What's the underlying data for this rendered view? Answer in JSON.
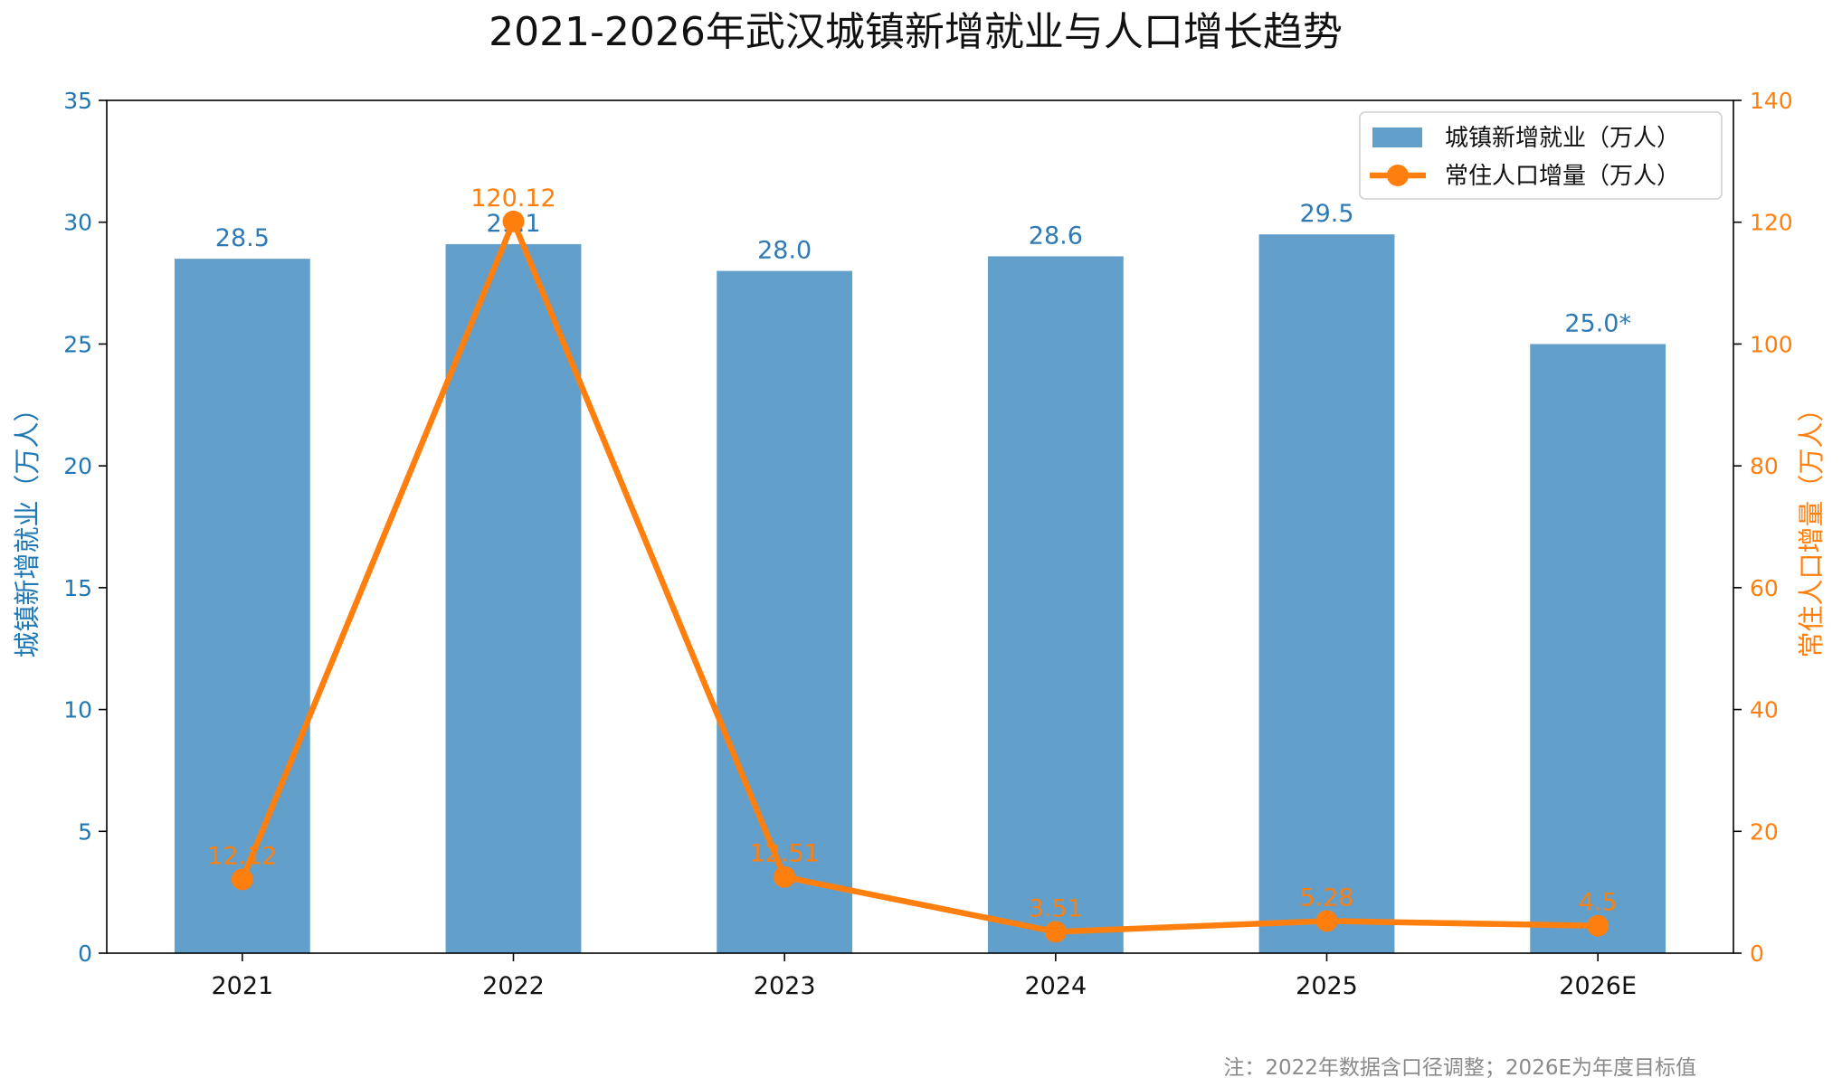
{
  "chart_data": {
    "type": "bar+line",
    "title": "2021-2026年武汉城镇新增就业与人口增长趋势",
    "categories": [
      "2021",
      "2022",
      "2023",
      "2024",
      "2025",
      "2026E"
    ],
    "series": [
      {
        "name": "城镇新增就业（万人）",
        "type": "bar",
        "axis": "left",
        "values": [
          28.5,
          29.1,
          28.0,
          28.6,
          29.5,
          25.0
        ],
        "labels": [
          "28.5",
          "29.1",
          "28.0",
          "28.6",
          "29.5",
          "25.0*"
        ],
        "color": "#629fca"
      },
      {
        "name": "常住人口增量（万人）",
        "type": "line",
        "axis": "right",
        "values": [
          12.12,
          120.12,
          12.51,
          3.51,
          5.28,
          4.5
        ],
        "labels": [
          "12.12",
          "120.12",
          "12.51",
          "3.51",
          "5.28",
          "4.5"
        ],
        "color": "#ff7f0e"
      }
    ],
    "y_left": {
      "label": "城镇新增就业（万人）",
      "lim": [
        0,
        35
      ],
      "ticks": [
        0,
        5,
        10,
        15,
        20,
        25,
        30,
        35
      ],
      "color": "#1f77b4"
    },
    "y_right": {
      "label": "常住人口增量（万人）",
      "lim": [
        0,
        140
      ],
      "ticks": [
        0,
        20,
        40,
        60,
        80,
        100,
        120,
        140
      ],
      "color": "#ff7f0e"
    },
    "grid": false,
    "legend": "top-right",
    "note": "注：2022年数据含口径调整；2026E为年度目标值"
  }
}
